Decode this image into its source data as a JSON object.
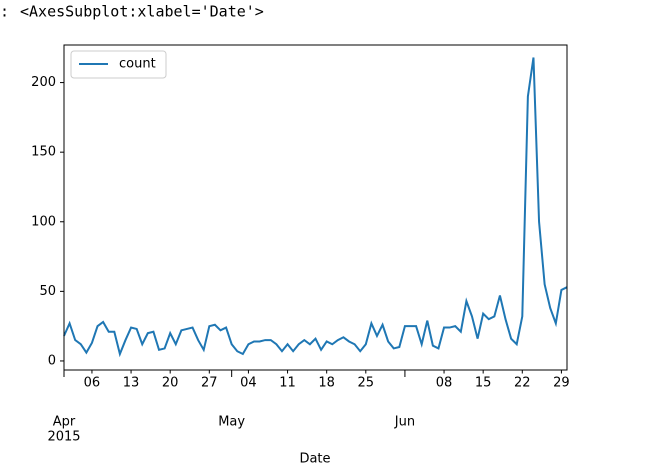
{
  "prompt": ":",
  "output_text": "<AxesSubplot:xlabel='Date'>",
  "chart_data": {
    "type": "line",
    "xlabel": "Date",
    "x": [
      "2015-04-01",
      "2015-04-02",
      "2015-04-03",
      "2015-04-04",
      "2015-04-05",
      "2015-04-06",
      "2015-04-07",
      "2015-04-08",
      "2015-04-09",
      "2015-04-10",
      "2015-04-11",
      "2015-04-12",
      "2015-04-13",
      "2015-04-14",
      "2015-04-15",
      "2015-04-16",
      "2015-04-17",
      "2015-04-18",
      "2015-04-19",
      "2015-04-20",
      "2015-04-21",
      "2015-04-22",
      "2015-04-23",
      "2015-04-24",
      "2015-04-25",
      "2015-04-26",
      "2015-04-27",
      "2015-04-28",
      "2015-04-29",
      "2015-04-30",
      "2015-05-01",
      "2015-05-02",
      "2015-05-03",
      "2015-05-04",
      "2015-05-05",
      "2015-05-06",
      "2015-05-07",
      "2015-05-08",
      "2015-05-09",
      "2015-05-10",
      "2015-05-11",
      "2015-05-12",
      "2015-05-13",
      "2015-05-14",
      "2015-05-15",
      "2015-05-16",
      "2015-05-17",
      "2015-05-18",
      "2015-05-19",
      "2015-05-20",
      "2015-05-21",
      "2015-05-22",
      "2015-05-23",
      "2015-05-24",
      "2015-05-25",
      "2015-05-26",
      "2015-05-27",
      "2015-05-28",
      "2015-05-29",
      "2015-05-30",
      "2015-05-31",
      "2015-06-01",
      "2015-06-02",
      "2015-06-03",
      "2015-06-04",
      "2015-06-05",
      "2015-06-06",
      "2015-06-07",
      "2015-06-08",
      "2015-06-09",
      "2015-06-10",
      "2015-06-11",
      "2015-06-12",
      "2015-06-13",
      "2015-06-14",
      "2015-06-15",
      "2015-06-16",
      "2015-06-17",
      "2015-06-18",
      "2015-06-19",
      "2015-06-20",
      "2015-06-21",
      "2015-06-22",
      "2015-06-23",
      "2015-06-24",
      "2015-06-25",
      "2015-06-26",
      "2015-06-27",
      "2015-06-28",
      "2015-06-29",
      "2015-06-30"
    ],
    "series": [
      {
        "name": "count",
        "color": "#1f77b4",
        "values": [
          18,
          27,
          15,
          12,
          6,
          13,
          25,
          28,
          21,
          21,
          5,
          15,
          24,
          23,
          12,
          20,
          21,
          8,
          9,
          20,
          12,
          22,
          23,
          24,
          15,
          8,
          25,
          26,
          22,
          24,
          12,
          7,
          5,
          12,
          14,
          14,
          15,
          15,
          12,
          7,
          12,
          7,
          12,
          15,
          12,
          16,
          8,
          14,
          12,
          15,
          17,
          14,
          12,
          7,
          12,
          27,
          18,
          26,
          14,
          9,
          10,
          25,
          25,
          25,
          12,
          29,
          11,
          9,
          24,
          24,
          25,
          21,
          43,
          32,
          16,
          34,
          30,
          32,
          47,
          30,
          16,
          12,
          32,
          190,
          218,
          100,
          55,
          38,
          27,
          51,
          53
        ]
      }
    ],
    "xlim": [
      "2015-04-01",
      "2015-06-30"
    ],
    "xticks": [
      {
        "value": "2015-04-06",
        "label": "06"
      },
      {
        "value": "2015-04-13",
        "label": "13"
      },
      {
        "value": "2015-04-20",
        "label": "20"
      },
      {
        "value": "2015-04-27",
        "label": "27"
      },
      {
        "value": "2015-05-04",
        "label": "04"
      },
      {
        "value": "2015-05-11",
        "label": "11"
      },
      {
        "value": "2015-05-18",
        "label": "18"
      },
      {
        "value": "2015-05-25",
        "label": "25"
      },
      {
        "value": "2015-06-08",
        "label": "08"
      },
      {
        "value": "2015-06-15",
        "label": "15"
      },
      {
        "value": "2015-06-22",
        "label": "22"
      },
      {
        "value": "2015-06-29",
        "label": "29"
      }
    ],
    "xticks_major": [
      {
        "value": "2015-04-01",
        "label": "Apr"
      },
      {
        "value": "2015-05-01",
        "label": "May"
      },
      {
        "value": "2015-06-01",
        "label": "Jun"
      }
    ],
    "x_year_label": "2015",
    "ylim": [
      -6.5,
      227
    ],
    "yticks": [
      0,
      50,
      100,
      150,
      200
    ],
    "grid": false,
    "legend": "upper left"
  }
}
